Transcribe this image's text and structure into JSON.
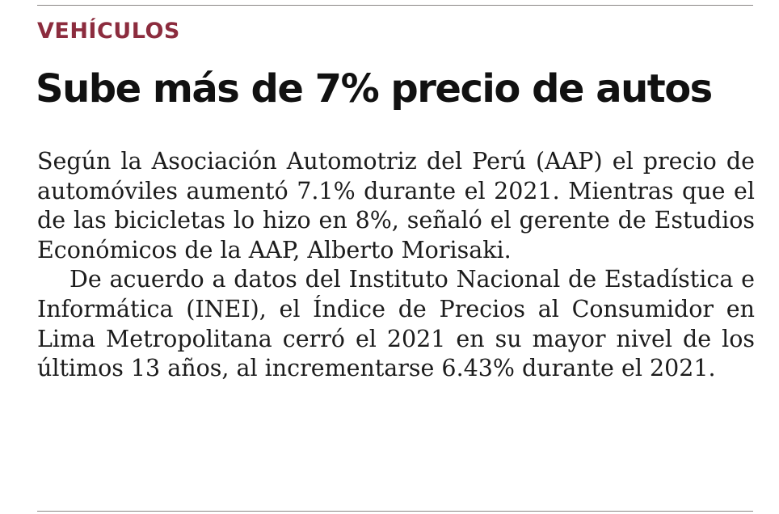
{
  "article": {
    "kicker": "VEHÍCULOS",
    "headline": "Sube más de 7% precio de autos",
    "paragraphs": [
      "Según la Asociación Automotriz del Perú (AAP) el precio de automóviles aumentó 7.1% durante el 2021. Mientras que el de las bicicletas lo hizo en 8%, señaló el gerente de Estudios Económicos de la AAP, Alberto Morisaki.",
      "De acuerdo a datos del Instituto Nacional de Estadística e Informática (INEI), el Índice de Precios al Consumidor en Lima Metropolitana cerró el 2021 en su mayor nivel de los últimos 13 años, al incrementarse 6.43% durante el 2021."
    ]
  }
}
